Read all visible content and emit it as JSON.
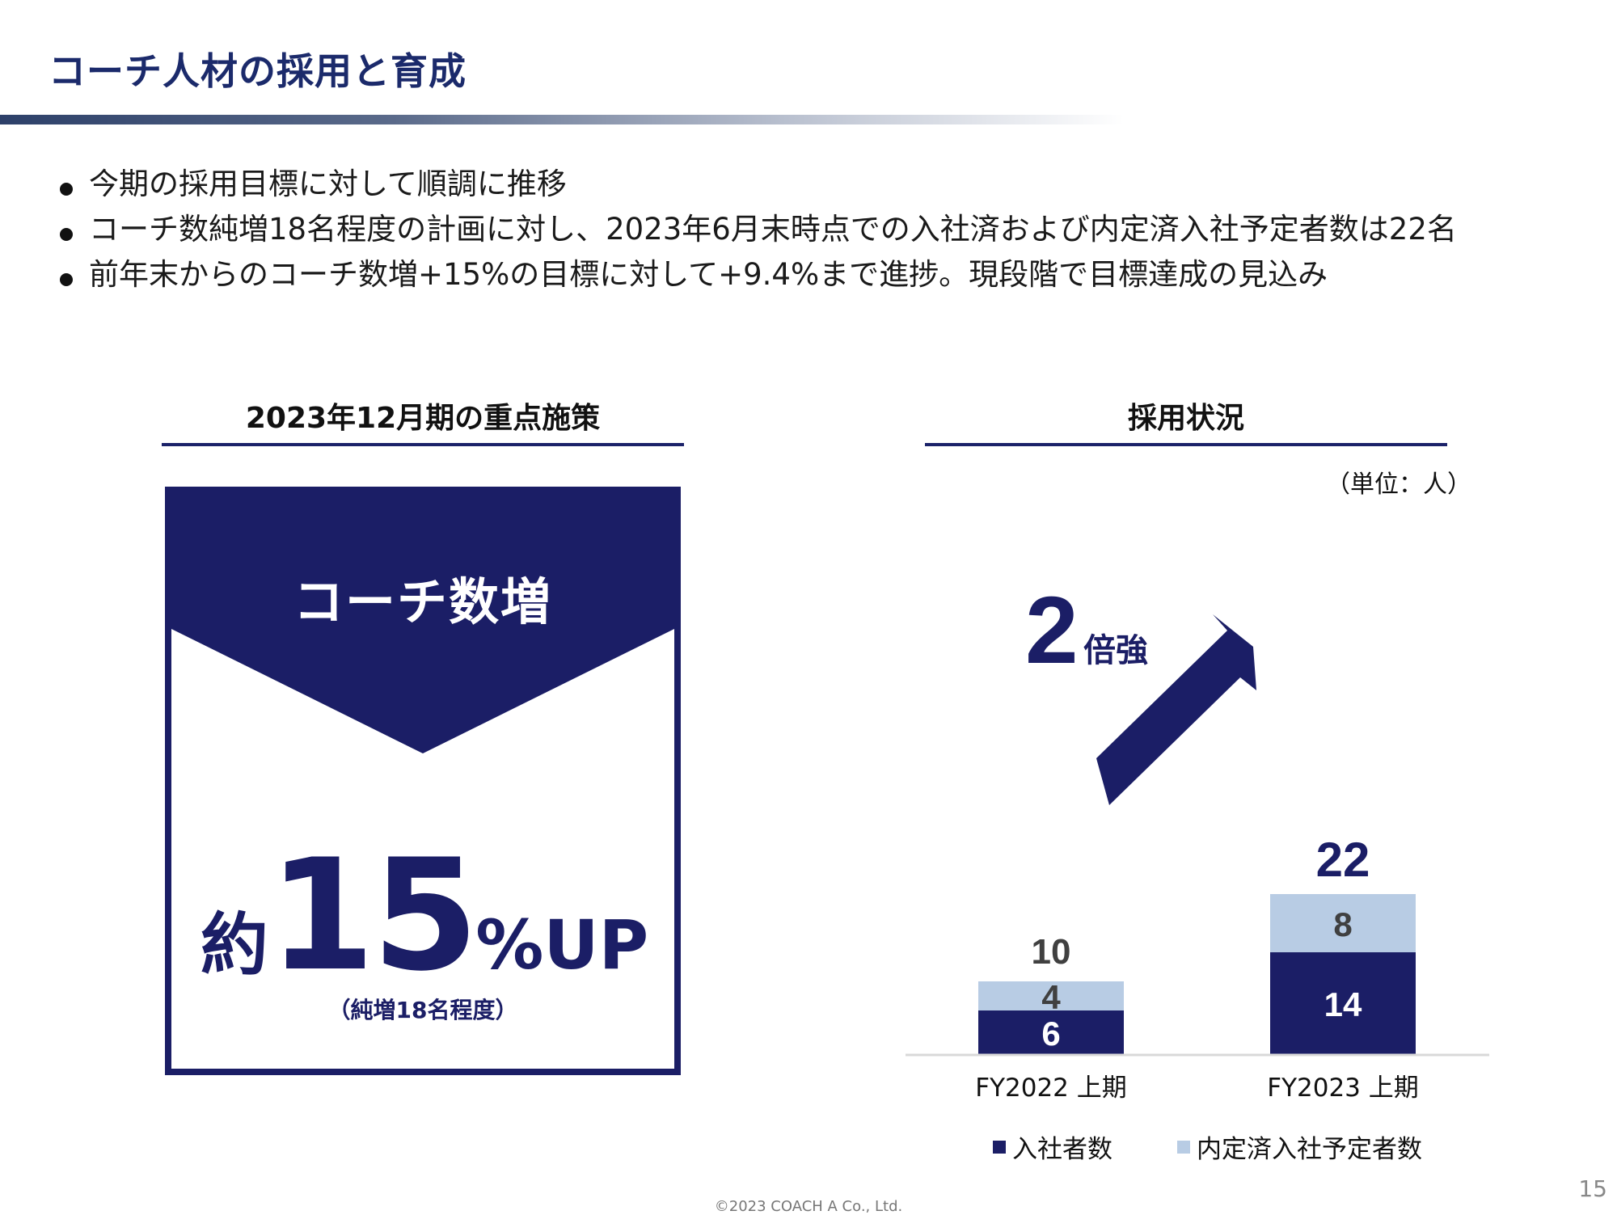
{
  "title": "コーチ人材の採用と育成",
  "bullets": [
    "今期の採用目標に対して順調に推移",
    "コーチ数純増18名程度の計画に対し、2023年6月末時点での入社済および内定済入社予定者数は22名",
    "前年末からのコーチ数増+15%の目標に対して+9.4%まで進捗。現段階で目標達成の見込み"
  ],
  "left_section": {
    "heading": "2023年12月期の重点施策",
    "panel_label": "コーチ数増",
    "value_prefix": "約",
    "value_number": "15",
    "value_suffix": "%UP",
    "value_note": "（純増18名程度）"
  },
  "right_section": {
    "heading": "採用状況",
    "unit": "（単位：人）",
    "growth_number": "2",
    "growth_text": "倍強"
  },
  "chart_data": {
    "type": "bar",
    "stacked": true,
    "categories": [
      "FY2022 上期",
      "FY2023 上期"
    ],
    "series": [
      {
        "name": "入社者数",
        "values": [
          6,
          14
        ],
        "color": "#1b1e66"
      },
      {
        "name": "内定済入社予定者数",
        "values": [
          4,
          8
        ],
        "color": "#b8cce4"
      }
    ],
    "totals": [
      10,
      22
    ],
    "ylim": [
      0,
      24
    ],
    "grid": false,
    "legend": "bottom"
  },
  "colors": {
    "navy": "#1b1e66",
    "light_blue": "#b8cce4",
    "title_blue": "#1b2a6b"
  },
  "footer": {
    "copyright": "©2023  COACH A Co., Ltd.",
    "page": "15"
  }
}
